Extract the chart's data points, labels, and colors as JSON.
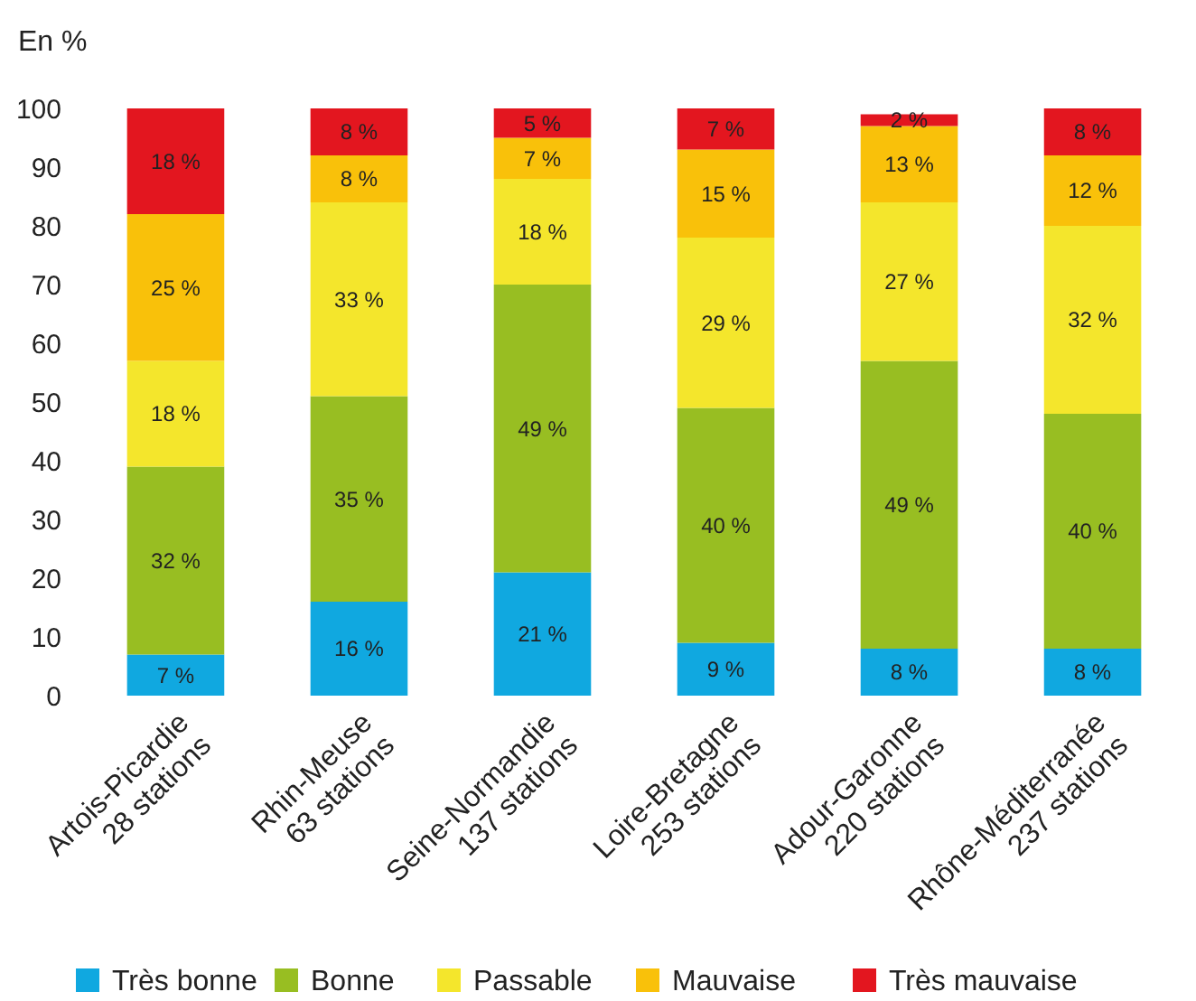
{
  "chart_data": {
    "type": "bar",
    "stacked": true,
    "ylabel": "En %",
    "categories": [
      "Artois-Picardie\n28 stations",
      "Rhin-Meuse\n63 stations",
      "Seine-Normandie\n137 stations",
      "Loire-Bretagne\n253 stations",
      "Adour-Garonne\n220 stations",
      "Rhône-Méditerranée\n237 stations"
    ],
    "series": [
      {
        "name": "Très bonne",
        "color": "#10a8e0",
        "values": [
          7,
          16,
          21,
          9,
          8,
          8
        ],
        "value_labels": [
          "7 %",
          "16 %",
          "21 %",
          "9 %",
          "8 %",
          "8 %"
        ]
      },
      {
        "name": "Bonne",
        "color": "#98be22",
        "values": [
          32,
          35,
          49,
          40,
          49,
          40
        ],
        "value_labels": [
          "32 %",
          "35 %",
          "49 %",
          "40 %",
          "49 %",
          "40 %"
        ]
      },
      {
        "name": "Passable",
        "color": "#f4e62c",
        "values": [
          18,
          33,
          18,
          29,
          27,
          32
        ],
        "value_labels": [
          "18 %",
          "33 %",
          "18 %",
          "29 %",
          "27 %",
          "32 %"
        ]
      },
      {
        "name": "Mauvaise",
        "color": "#f9c10a",
        "values": [
          25,
          8,
          7,
          15,
          13,
          12
        ],
        "value_labels": [
          "25 %",
          "8 %",
          "7 %",
          "15 %",
          "13 %",
          "12 %"
        ]
      },
      {
        "name": "Très mauvaise",
        "color": "#e3161f",
        "values": [
          18,
          8,
          5,
          7,
          2,
          8
        ],
        "value_labels": [
          "18 %",
          "8 %",
          "5 %",
          "7 %",
          "2 %",
          "8 %"
        ]
      }
    ],
    "ylim": [
      0,
      100
    ],
    "yticks": [
      0,
      10,
      20,
      30,
      40,
      50,
      60,
      70,
      80,
      90,
      100
    ],
    "legend": "bottom"
  }
}
